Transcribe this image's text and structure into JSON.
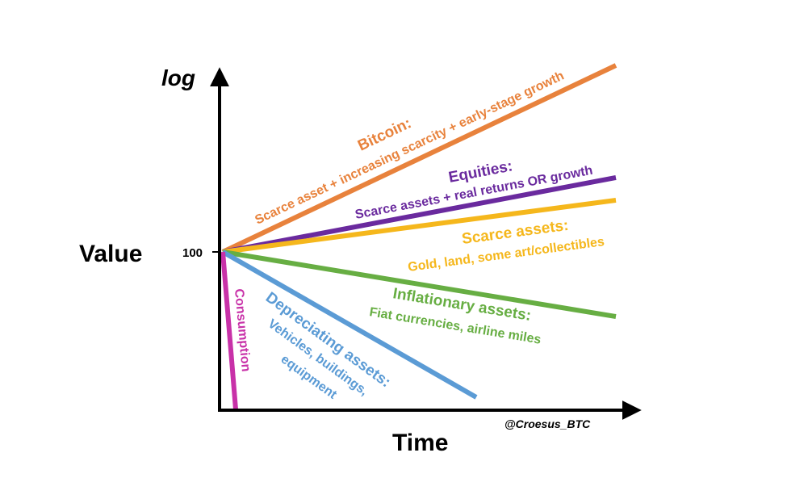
{
  "axes": {
    "y_title": "Value",
    "y_scale_label": "log",
    "x_title": "Time",
    "origin_value": "100",
    "credit": "@Croesus_BTC"
  },
  "lines": [
    {
      "key": "bitcoin",
      "color": "#E8823C",
      "title": "Bitcoin:",
      "subtitle": "Scarce asset + increasing scarcity + early-stage growth"
    },
    {
      "key": "equities",
      "color": "#6A2A9E",
      "title": "Equities:",
      "subtitle": "Scarce assets + real returns OR growth"
    },
    {
      "key": "scarce",
      "color": "#F5B71C",
      "title": "Scarce assets:",
      "subtitle": "Gold, land, some art/collectibles"
    },
    {
      "key": "inflationary",
      "color": "#67AE43",
      "title": "Inflationary assets:",
      "subtitle": "Fiat currencies, airline miles"
    },
    {
      "key": "depreciating",
      "color": "#5B9BD5",
      "title": "Depreciating assets:",
      "subtitle_lines": [
        "Vehicles, buildings,",
        "equipment"
      ]
    },
    {
      "key": "consumption",
      "color": "#C831A8",
      "title": "Consumption"
    }
  ]
}
